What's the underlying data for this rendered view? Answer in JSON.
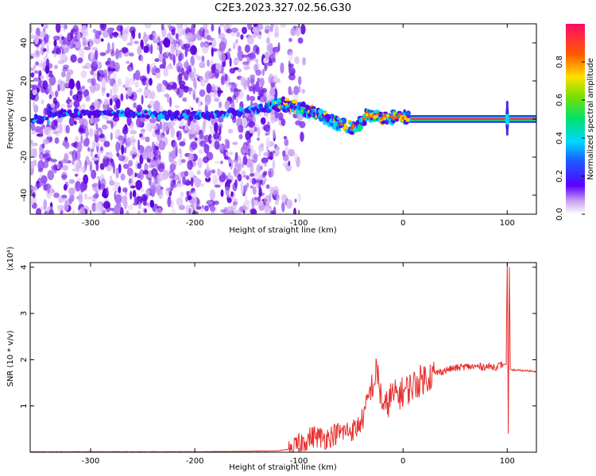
{
  "title": "C2E3.2023.327.02.56.G30",
  "colors": {
    "snr_line": "#e8312f",
    "spectrum_low": "#d9b8f5",
    "spectrum_mid": "#6a00e0",
    "carrier_band": "#ff2a6a"
  },
  "chart_data": [
    {
      "type": "heatmap",
      "panel": "spectrogram",
      "xlabel": "Height of straight line (km)",
      "ylabel": "Frequency (Hz)",
      "xlim": [
        -358,
        128
      ],
      "ylim": [
        -50,
        50
      ],
      "x_ticks": [
        -300,
        -200,
        -100,
        0,
        100
      ],
      "x_tick_labels": [
        "-300",
        "-200",
        "-100",
        "0",
        "100"
      ],
      "y_ticks": [
        -40,
        -20,
        0,
        20,
        40
      ],
      "y_tick_labels": [
        "-40",
        "-20",
        "0",
        "20",
        "40"
      ],
      "colorbar": {
        "label": "Normalized spectral amplitude",
        "range": [
          0.0,
          1.0
        ],
        "ticks": [
          0.0,
          0.2,
          0.4,
          0.6,
          0.8
        ],
        "tick_labels": [
          "0.0",
          "0.2",
          "0.4",
          "0.6",
          "0.8"
        ],
        "colormap": "rainbow"
      },
      "features": {
        "noise_region_x": [
          -358,
          -120
        ],
        "dominant_trace": [
          {
            "x": -340,
            "f": 3
          },
          {
            "x": -300,
            "f": 3
          },
          {
            "x": -260,
            "f": 3
          },
          {
            "x": -220,
            "f": 2
          },
          {
            "x": -180,
            "f": 2
          },
          {
            "x": -140,
            "f": 5
          },
          {
            "x": -120,
            "f": 8
          },
          {
            "x": -100,
            "f": 6
          },
          {
            "x": -80,
            "f": 2
          },
          {
            "x": -60,
            "f": -3
          },
          {
            "x": -45,
            "f": -5
          },
          {
            "x": -35,
            "f": 2
          },
          {
            "x": -20,
            "f": 1
          },
          {
            "x": 0,
            "f": 1
          },
          {
            "x": 50,
            "f": 0
          },
          {
            "x": 100,
            "f": 0
          },
          {
            "x": 128,
            "f": 0
          }
        ],
        "spike_x": 100
      }
    },
    {
      "type": "line",
      "panel": "snr",
      "xlabel": "Height of straight line (km)",
      "ylabel": "SNR (10 * v/v)",
      "y_multiplier_label": "(x10⁴)",
      "xlim": [
        -358,
        128
      ],
      "ylim": [
        0,
        4.1
      ],
      "x_ticks": [
        -300,
        -200,
        -100,
        0,
        100
      ],
      "x_tick_labels": [
        "-300",
        "-200",
        "-100",
        "0",
        "100"
      ],
      "y_ticks": [
        1,
        2,
        3,
        4
      ],
      "y_tick_labels": [
        "1",
        "2",
        "3",
        "4"
      ],
      "series": [
        {
          "x": [
            -358,
            -300,
            -250,
            -200,
            -150,
            -120,
            -105,
            -95,
            -85,
            -75,
            -65,
            -55,
            -45,
            -38,
            -32,
            -28,
            -25,
            -22,
            -18,
            -12,
            -5,
            0,
            10,
            20,
            30,
            45,
            60,
            75,
            90,
            96,
            99,
            100,
            101,
            102,
            103,
            105,
            110,
            120,
            128
          ],
          "y": [
            0.01,
            0.01,
            0.01,
            0.01,
            0.02,
            0.03,
            0.08,
            0.25,
            0.35,
            0.3,
            0.4,
            0.45,
            0.5,
            0.75,
            1.3,
            1.5,
            1.8,
            1.3,
            0.9,
            1.2,
            1.25,
            1.3,
            1.45,
            1.6,
            1.7,
            1.8,
            1.85,
            1.85,
            1.85,
            1.9,
            1.9,
            4.1,
            0.4,
            4.0,
            1.8,
            1.78,
            1.77,
            1.76,
            1.75
          ]
        }
      ]
    }
  ]
}
